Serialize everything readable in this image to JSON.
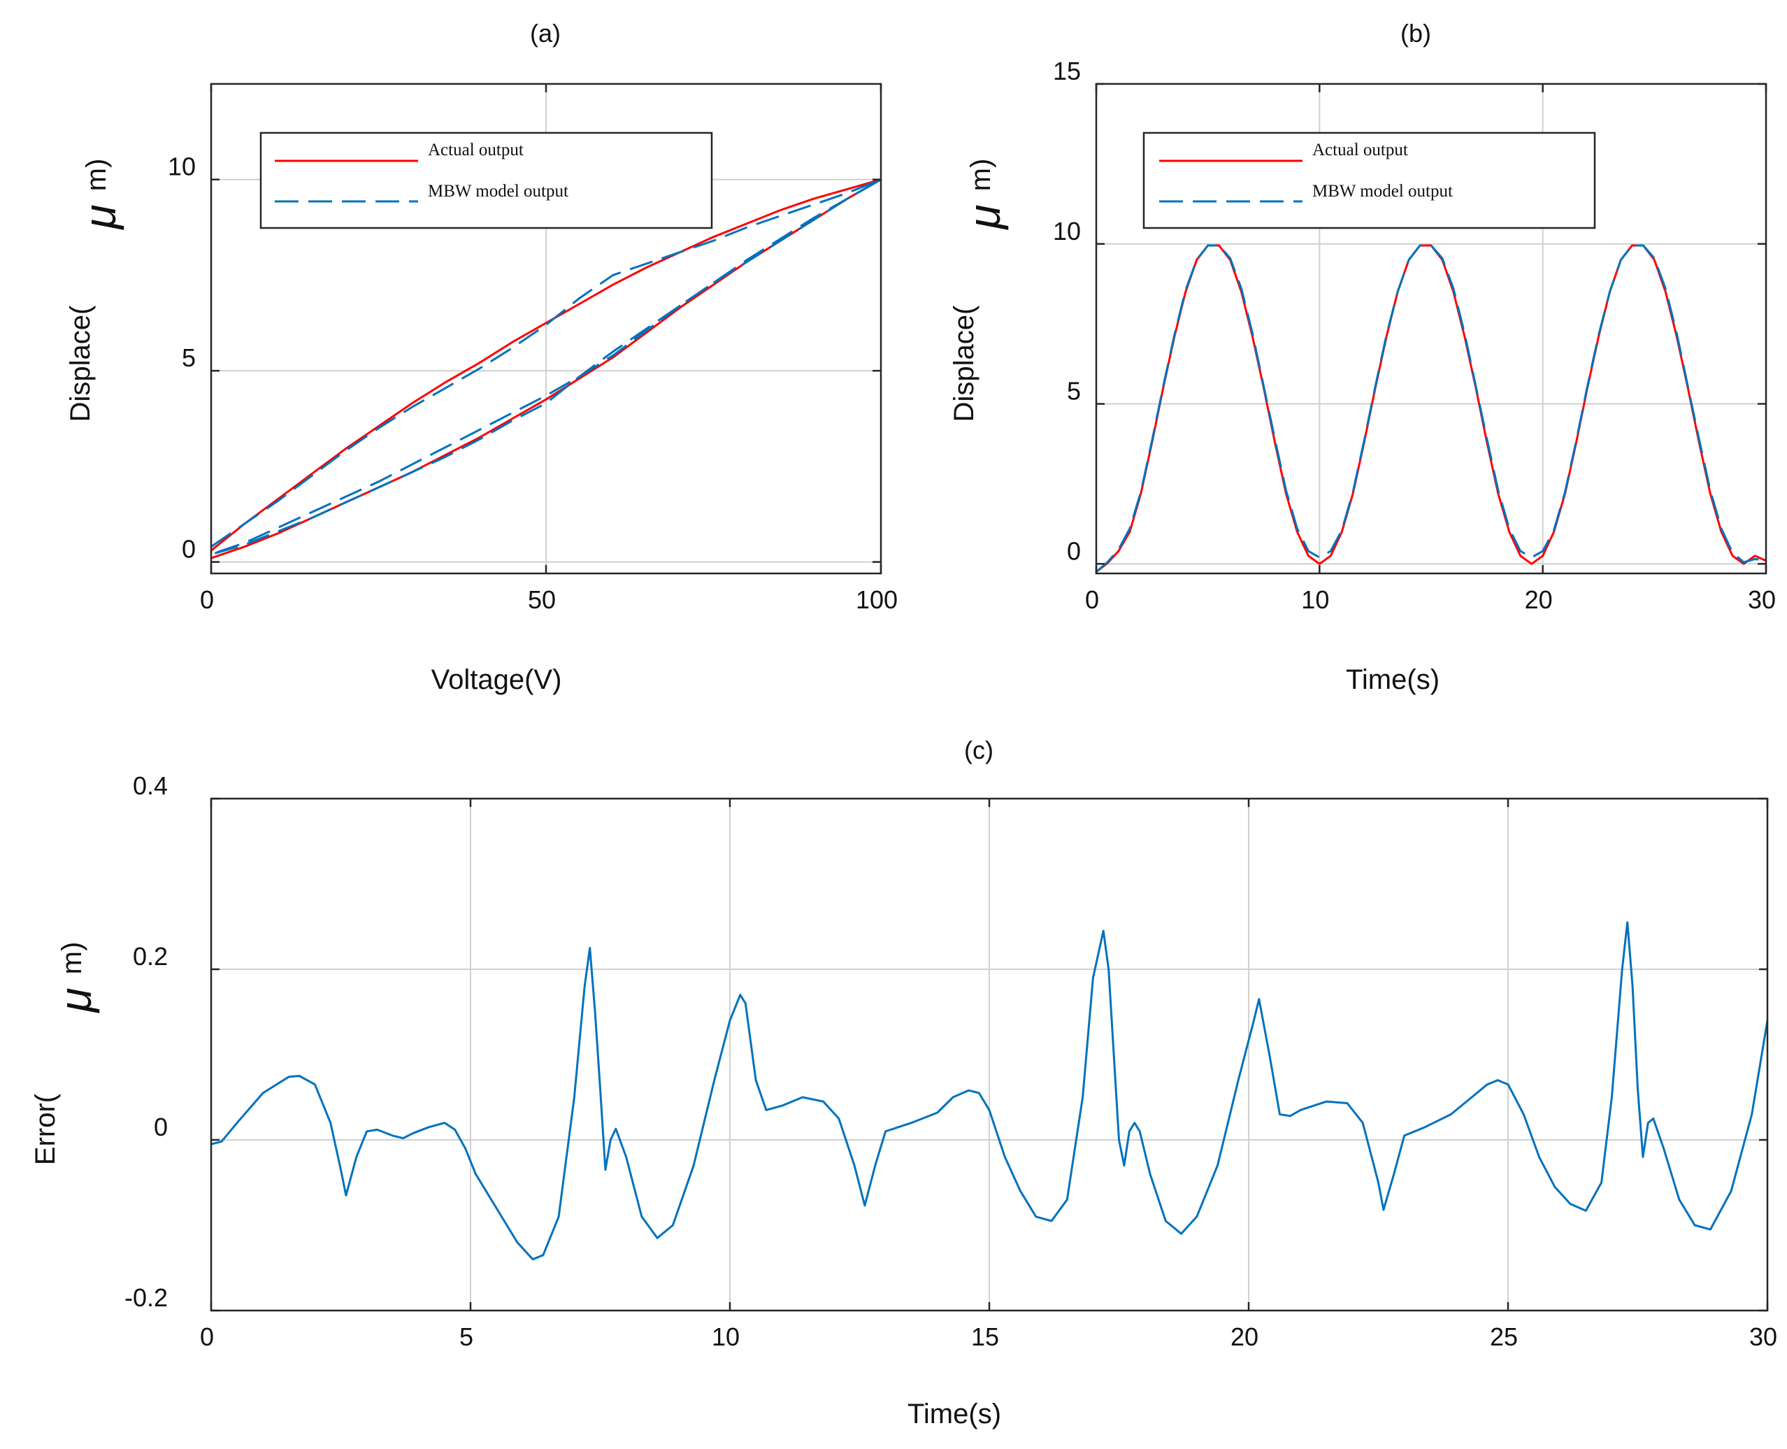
{
  "colors": {
    "actual": "#ff0000",
    "model": "#0072bd",
    "grid": "#d0d0d0",
    "axis": "#262626",
    "text": "#111111"
  },
  "chart_data": [
    {
      "type": "line",
      "title": "(a)",
      "xlabel": "Voltage(V)",
      "ylabel": "Displace(",
      "ylabel_unit": "μ",
      "ylabel_sup": "m)",
      "xlim": [
        0,
        100
      ],
      "ylim": [
        -0.3,
        12.5
      ],
      "xticks": [
        0,
        50,
        100
      ],
      "xtick_labels": [
        "0",
        "50",
        "100"
      ],
      "yticks": [
        0,
        5,
        10
      ],
      "ytick_labels": [
        "0",
        "5",
        "10"
      ],
      "grid": true,
      "legend": {
        "position": "top-left",
        "entries": [
          "Actual output",
          "MBW model output"
        ]
      },
      "series": [
        {
          "name": "Actual output",
          "style": "solid",
          "x": [
            0,
            5,
            10,
            15,
            20,
            25,
            30,
            35,
            40,
            45,
            50,
            55,
            60,
            65,
            70,
            75,
            80,
            85,
            90,
            95,
            100,
            95,
            90,
            85,
            80,
            75,
            70,
            65,
            60,
            55,
            50,
            45,
            40,
            35,
            30,
            25,
            20,
            15,
            10,
            5,
            0
          ],
          "y": [
            0.3,
            1.0,
            1.65,
            2.3,
            2.95,
            3.55,
            4.15,
            4.7,
            5.2,
            5.75,
            6.25,
            6.75,
            7.25,
            7.7,
            8.1,
            8.5,
            8.85,
            9.2,
            9.5,
            9.75,
            10.0,
            9.5,
            8.95,
            8.4,
            7.85,
            7.25,
            6.65,
            6.0,
            5.35,
            4.8,
            4.25,
            3.75,
            3.25,
            2.8,
            2.35,
            1.95,
            1.55,
            1.15,
            0.75,
            0.4,
            0.1
          ]
        },
        {
          "name": "MBW model output",
          "style": "dashed",
          "x": [
            0,
            5,
            10,
            15,
            20,
            25,
            30,
            35,
            40,
            45,
            50,
            55,
            60,
            65,
            70,
            75,
            80,
            85,
            90,
            95,
            100,
            95,
            90,
            85,
            80,
            75,
            70,
            65,
            60,
            55,
            50,
            45,
            40,
            35,
            30,
            25,
            20,
            15,
            10,
            5,
            0,
            5,
            10,
            15,
            20,
            25,
            30,
            35,
            40,
            45,
            50,
            55,
            60,
            65,
            70,
            75,
            80,
            85,
            90,
            95,
            100
          ],
          "y": [
            0.4,
            1.0,
            1.6,
            2.25,
            2.9,
            3.5,
            4.05,
            4.55,
            5.05,
            5.6,
            6.2,
            6.9,
            7.5,
            7.8,
            8.1,
            8.4,
            8.75,
            9.05,
            9.35,
            9.65,
            10.0,
            9.5,
            9.0,
            8.45,
            7.9,
            7.3,
            6.7,
            6.05,
            5.4,
            4.85,
            4.35,
            3.9,
            3.45,
            3.0,
            2.55,
            2.1,
            1.7,
            1.3,
            0.9,
            0.5,
            0.2,
            0.45,
            0.8,
            1.15,
            1.55,
            1.95,
            2.35,
            2.75,
            3.2,
            3.7,
            4.15,
            4.85,
            5.5,
            6.1,
            6.7,
            7.3,
            7.85,
            8.4,
            8.95,
            9.5,
            10.0
          ]
        }
      ]
    },
    {
      "type": "line",
      "title": "(b)",
      "xlabel": "Time(s)",
      "ylabel": "Displace(",
      "ylabel_unit": "μ",
      "ylabel_sup": "m)",
      "xlim": [
        0,
        30
      ],
      "ylim": [
        -0.3,
        15
      ],
      "xticks": [
        0,
        10,
        20,
        30
      ],
      "xtick_labels": [
        "0",
        "10",
        "20",
        "30"
      ],
      "yticks": [
        0,
        5,
        10,
        15
      ],
      "ytick_labels": [
        "0",
        "5",
        "10",
        "15"
      ],
      "grid": true,
      "legend": {
        "position": "top-left",
        "entries": [
          "Actual output",
          "MBW model output"
        ]
      },
      "series": [
        {
          "name": "Actual output",
          "style": "solid",
          "x": [
            0,
            0.5,
            1,
            1.5,
            2,
            2.5,
            3,
            3.5,
            4,
            4.5,
            5,
            5.5,
            6,
            6.5,
            7,
            7.5,
            8,
            8.5,
            9,
            9.5,
            10,
            10.5,
            11,
            11.5,
            12,
            12.5,
            13,
            13.5,
            14,
            14.5,
            15,
            15.5,
            16,
            16.5,
            17,
            17.5,
            18,
            18.5,
            19,
            19.5,
            20,
            20.5,
            21,
            21.5,
            22,
            22.5,
            23,
            23.5,
            24,
            24.5,
            25,
            25.5,
            26,
            26.5,
            27,
            27.5,
            28,
            28.5,
            29,
            29.5,
            30
          ],
          "y": [
            -0.25,
            0.02,
            0.4,
            1.0,
            2.2,
            3.8,
            5.5,
            7.1,
            8.5,
            9.5,
            9.95,
            9.95,
            9.5,
            8.5,
            7.1,
            5.5,
            3.8,
            2.2,
            1.0,
            0.25,
            0.0,
            0.25,
            1.0,
            2.2,
            3.8,
            5.5,
            7.1,
            8.5,
            9.5,
            9.95,
            9.95,
            9.5,
            8.5,
            7.1,
            5.5,
            3.8,
            2.2,
            1.0,
            0.25,
            0.0,
            0.25,
            1.0,
            2.2,
            3.8,
            5.5,
            7.1,
            8.5,
            9.5,
            9.95,
            9.95,
            9.5,
            8.5,
            7.1,
            5.5,
            3.8,
            2.2,
            1.0,
            0.25,
            0.0,
            0.25,
            0.1
          ]
        },
        {
          "name": "MBW model output",
          "style": "dashed",
          "x": [
            0,
            0.5,
            1,
            1.5,
            2,
            2.5,
            3,
            3.5,
            4,
            4.5,
            5,
            5.5,
            6,
            6.5,
            7,
            7.5,
            8,
            8.5,
            9,
            9.5,
            10,
            10.5,
            11,
            11.5,
            12,
            12.5,
            13,
            13.5,
            14,
            14.5,
            15,
            15.5,
            16,
            16.5,
            17,
            17.5,
            18,
            18.5,
            19,
            19.5,
            20,
            20.5,
            21,
            21.5,
            22,
            22.5,
            23,
            23.5,
            24,
            24.5,
            25,
            25.5,
            26,
            26.5,
            27,
            27.5,
            28,
            28.5,
            29,
            29.5,
            30
          ],
          "y": [
            -0.25,
            0.05,
            0.45,
            1.1,
            2.25,
            3.85,
            5.55,
            7.15,
            8.55,
            9.5,
            9.95,
            9.95,
            9.55,
            8.6,
            7.2,
            5.55,
            3.9,
            2.3,
            1.1,
            0.4,
            0.2,
            0.4,
            1.05,
            2.25,
            3.85,
            5.55,
            7.15,
            8.5,
            9.5,
            9.95,
            9.95,
            9.55,
            8.6,
            7.2,
            5.55,
            3.9,
            2.3,
            1.1,
            0.4,
            0.2,
            0.4,
            1.05,
            2.25,
            3.85,
            5.55,
            7.15,
            8.5,
            9.5,
            9.95,
            9.95,
            9.55,
            8.6,
            7.2,
            5.55,
            3.9,
            2.3,
            1.1,
            0.35,
            0.05,
            0.15,
            0.1
          ]
        }
      ]
    },
    {
      "type": "line",
      "title": "(c)",
      "xlabel": "Time(s)",
      "ylabel": "Error(",
      "ylabel_unit": "μ",
      "ylabel_sup": "m)",
      "xlim": [
        0,
        30
      ],
      "ylim": [
        -0.2,
        0.4
      ],
      "xticks": [
        0,
        5,
        10,
        15,
        20,
        25,
        30
      ],
      "xtick_labels": [
        "0",
        "5",
        "10",
        "15",
        "20",
        "25",
        "30"
      ],
      "yticks": [
        -0.2,
        0,
        0.2,
        0.4
      ],
      "ytick_labels": [
        "-0.2",
        "0",
        "0.2",
        "0.4"
      ],
      "grid": true,
      "series": [
        {
          "name": "Error",
          "style": "solid",
          "x": [
            0,
            0.2,
            0.5,
            1.0,
            1.5,
            1.7,
            2.0,
            2.3,
            2.5,
            2.6,
            2.8,
            3.0,
            3.2,
            3.5,
            3.7,
            3.9,
            4.2,
            4.5,
            4.7,
            4.9,
            5.1,
            5.5,
            5.9,
            6.2,
            6.4,
            6.7,
            7.0,
            7.2,
            7.3,
            7.4,
            7.5,
            7.6,
            7.7,
            7.8,
            8.0,
            8.3,
            8.6,
            8.9,
            9.3,
            9.7,
            10.0,
            10.2,
            10.3,
            10.5,
            10.7,
            11.0,
            11.4,
            11.8,
            12.1,
            12.4,
            12.6,
            12.8,
            13.0,
            13.5,
            14.0,
            14.3,
            14.6,
            14.8,
            15.0,
            15.3,
            15.6,
            15.9,
            16.2,
            16.5,
            16.8,
            17.0,
            17.2,
            17.3,
            17.4,
            17.5,
            17.6,
            17.7,
            17.8,
            17.9,
            18.1,
            18.4,
            18.7,
            19.0,
            19.4,
            19.8,
            20.1,
            20.2,
            20.4,
            20.6,
            20.8,
            21.0,
            21.5,
            21.9,
            22.2,
            22.5,
            22.6,
            22.8,
            23.0,
            23.4,
            23.9,
            24.3,
            24.6,
            24.8,
            25.0,
            25.3,
            25.6,
            25.9,
            26.2,
            26.5,
            26.8,
            27.0,
            27.2,
            27.3,
            27.4,
            27.5,
            27.6,
            27.7,
            27.8,
            28.0,
            28.3,
            28.6,
            28.9,
            29.3,
            29.7,
            30.0
          ],
          "y": [
            -0.005,
            -0.002,
            0.02,
            0.055,
            0.074,
            0.075,
            0.065,
            0.02,
            -0.035,
            -0.065,
            -0.02,
            0.01,
            0.012,
            0.005,
            0.002,
            0.008,
            0.015,
            0.02,
            0.012,
            -0.01,
            -0.04,
            -0.08,
            -0.12,
            -0.14,
            -0.135,
            -0.09,
            0.05,
            0.18,
            0.225,
            0.15,
            0.06,
            -0.035,
            0.0,
            0.013,
            -0.02,
            -0.09,
            -0.115,
            -0.1,
            -0.03,
            0.07,
            0.14,
            0.17,
            0.16,
            0.07,
            0.035,
            0.04,
            0.05,
            0.045,
            0.025,
            -0.03,
            -0.077,
            -0.03,
            0.01,
            0.02,
            0.032,
            0.05,
            0.058,
            0.055,
            0.035,
            -0.02,
            -0.06,
            -0.09,
            -0.095,
            -0.07,
            0.05,
            0.19,
            0.245,
            0.2,
            0.1,
            0.0,
            -0.03,
            0.01,
            0.02,
            0.01,
            -0.04,
            -0.095,
            -0.11,
            -0.09,
            -0.03,
            0.07,
            0.14,
            0.165,
            0.1,
            0.03,
            0.028,
            0.035,
            0.045,
            0.043,
            0.02,
            -0.05,
            -0.082,
            -0.04,
            0.005,
            0.015,
            0.03,
            0.05,
            0.065,
            0.07,
            0.065,
            0.03,
            -0.02,
            -0.055,
            -0.075,
            -0.083,
            -0.05,
            0.05,
            0.2,
            0.255,
            0.18,
            0.06,
            -0.02,
            0.02,
            0.025,
            -0.01,
            -0.07,
            -0.1,
            -0.105,
            -0.06,
            0.03,
            0.14
          ]
        }
      ]
    }
  ]
}
